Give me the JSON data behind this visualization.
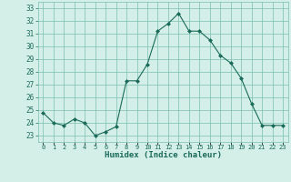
{
  "x": [
    0,
    1,
    2,
    3,
    4,
    5,
    6,
    7,
    8,
    9,
    10,
    11,
    12,
    13,
    14,
    15,
    16,
    17,
    18,
    19,
    20,
    21,
    22,
    23
  ],
  "y": [
    24.8,
    24.0,
    23.8,
    24.3,
    24.0,
    23.0,
    23.3,
    23.7,
    27.3,
    27.3,
    28.6,
    31.2,
    31.8,
    32.6,
    31.2,
    31.2,
    30.5,
    29.3,
    28.7,
    27.5,
    25.5,
    23.8,
    23.8,
    23.8
  ],
  "line_color": "#1a6b5a",
  "marker": "D",
  "marker_size": 2.0,
  "xlabel": "Humidex (Indice chaleur)",
  "ylim": [
    22.5,
    33.5
  ],
  "xlim": [
    -0.5,
    23.5
  ],
  "yticks": [
    23,
    24,
    25,
    26,
    27,
    28,
    29,
    30,
    31,
    32,
    33
  ],
  "xtick_labels": [
    "0",
    "1",
    "2",
    "3",
    "4",
    "5",
    "6",
    "7",
    "8",
    "9",
    "10",
    "11",
    "12",
    "13",
    "14",
    "15",
    "16",
    "17",
    "18",
    "19",
    "20",
    "21",
    "22",
    "23"
  ],
  "bg_color": "#d4eee8",
  "grid_color": "#7bbfb0",
  "font_color": "#1a6b5a"
}
